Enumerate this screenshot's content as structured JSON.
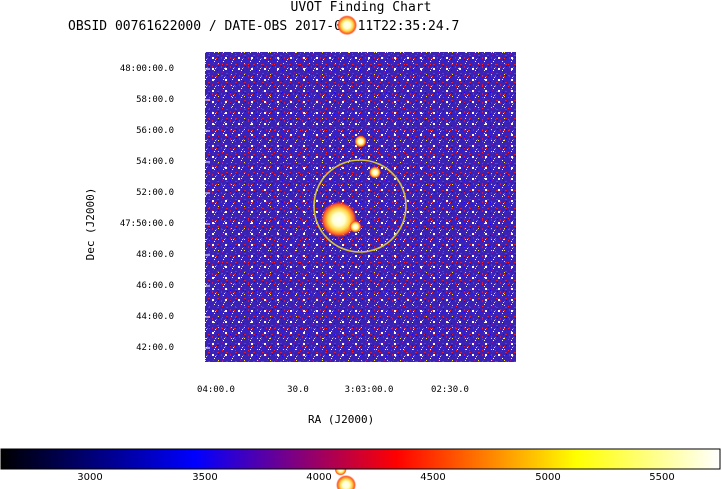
{
  "chart_data": {
    "type": "heatmap",
    "title": "UVOT Finding Chart",
    "subtitle": "OBSID 00761622000 / DATE-OBS 2017-07-11T22:35:24.7",
    "xlabel": "RA (J2000)",
    "ylabel": "Dec (J2000)",
    "x_ticks": [
      {
        "label": "04:00.0",
        "ra": "3:04:00.0"
      },
      {
        "label": "30.0",
        "ra": "3:03:30.0"
      },
      {
        "label": "3:03:00.0",
        "ra": "3:03:00.0"
      },
      {
        "label": "02:30.0",
        "ra": "3:02:30.0"
      }
    ],
    "y_ticks": [
      {
        "label": "48:00:00.0",
        "dec": "47:60:00.0"
      },
      {
        "label": "58:00.0",
        "dec": "47:58:00.0"
      },
      {
        "label": "56:00.0",
        "dec": "47:56:00.0"
      },
      {
        "label": "54:00.0",
        "dec": "47:54:00.0"
      },
      {
        "label": "52:00.0",
        "dec": "47:52:00.0"
      },
      {
        "label": "47:50:00.0",
        "dec": "47:50:00.0"
      },
      {
        "label": "48:00.0",
        "dec": "47:48:00.0"
      },
      {
        "label": "46:00.0",
        "dec": "47:46:00.0"
      },
      {
        "label": "44:00.0",
        "dec": "47:44:00.0"
      },
      {
        "label": "42:00.0",
        "dec": "47:42:00.0"
      }
    ],
    "colorbar": {
      "range": [
        2700,
        5700
      ],
      "ticks": [
        3000,
        3500,
        4000,
        4500,
        5000,
        5500
      ],
      "colors": [
        "#000000",
        "#0000ff",
        "#ff0000",
        "#ffff00",
        "#ffffff"
      ]
    },
    "stars": [
      {
        "ra_offset_arcsec": -82,
        "dec_offset_arcsec": -52,
        "size": "large"
      },
      {
        "ra_offset_arcsec": -54,
        "dec_offset_arcsec": -1080,
        "size": "medium"
      },
      {
        "ra_offset_arcsec": -50,
        "dec_offset_arcsec": 700,
        "size": "medium"
      },
      {
        "ra_offset_arcsec": 2,
        "dec_offset_arcsec": 250,
        "size": "small"
      },
      {
        "ra_offset_arcsec": 58,
        "dec_offset_arcsec": 130,
        "size": "small"
      },
      {
        "ra_offset_arcsec": -18,
        "dec_offset_arcsec": -80,
        "size": "small"
      },
      {
        "ra_offset_arcsec": -75,
        "dec_offset_arcsec": -1020,
        "size": "small"
      }
    ],
    "region_circle": {
      "color": "#d9c23a"
    }
  }
}
